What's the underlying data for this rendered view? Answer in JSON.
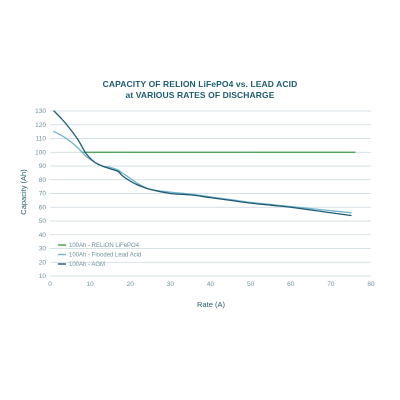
{
  "chart_data": {
    "type": "line",
    "title": "CAPACITY OF RELION LiFePO4 vs. LEAD ACID",
    "subtitle": "at VARIOUS RATES OF DISCHARGE",
    "xlabel": "Rate (A)",
    "ylabel": "Capacity (Ah)",
    "xlim": [
      0,
      80
    ],
    "ylim": [
      10,
      130
    ],
    "x_ticks": [
      0,
      10,
      20,
      30,
      40,
      50,
      60,
      70,
      80
    ],
    "y_ticks": [
      10,
      20,
      30,
      40,
      50,
      60,
      70,
      80,
      90,
      100,
      110,
      120,
      130
    ],
    "grid": "horizontal",
    "legend_position": "lower-left",
    "series": [
      {
        "name": "100Ah - RELiON LiFePO4",
        "color": "#3d9b47",
        "x": [
          8,
          76
        ],
        "y": [
          100,
          100
        ]
      },
      {
        "name": "100Ah - Flooded Lead Acid",
        "color": "#6fb2cf",
        "x": [
          1,
          3,
          5,
          7,
          9,
          11,
          13,
          15,
          17,
          18,
          20,
          22,
          25,
          30,
          35,
          40,
          45,
          50,
          55,
          60,
          65,
          70,
          75
        ],
        "y": [
          115,
          112,
          108,
          103,
          97,
          93,
          90,
          89,
          87,
          85,
          81,
          77,
          73,
          71,
          69.5,
          67.5,
          65.5,
          63.5,
          62,
          60.5,
          59,
          57.5,
          56
        ]
      },
      {
        "name": "100Ah - AGM",
        "color": "#1e5b73",
        "x": [
          1,
          3,
          5,
          7,
          9,
          11,
          13,
          15,
          17,
          18,
          20,
          22,
          25,
          30,
          35,
          40,
          45,
          50,
          55,
          60,
          65,
          70,
          75
        ],
        "y": [
          130,
          124,
          117,
          109,
          99,
          93,
          90,
          88,
          86,
          83,
          79,
          76,
          73,
          70,
          69,
          67,
          65,
          63,
          61.5,
          60,
          58,
          56,
          54
        ]
      }
    ]
  }
}
